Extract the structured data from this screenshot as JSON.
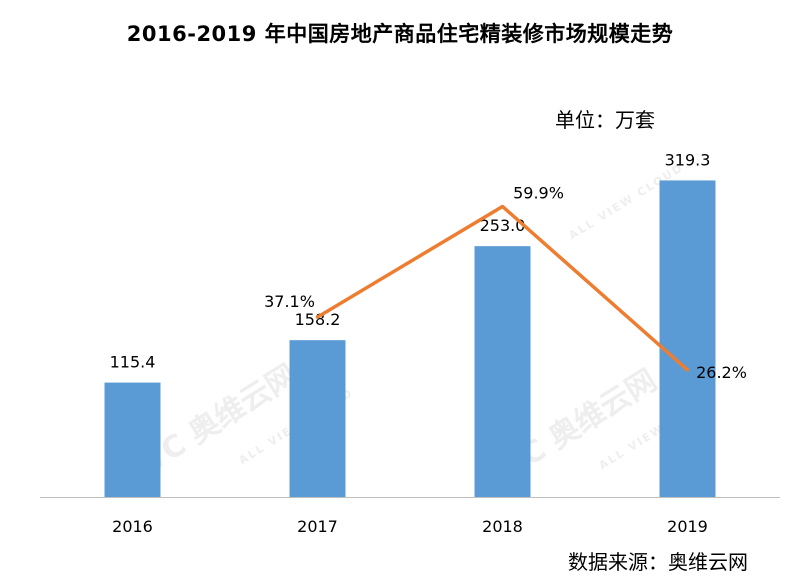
{
  "title": "2016-2019 年中国房地产商品住宅精装修市场规模走势",
  "unit_label": "单位：万套",
  "source_label": "数据来源：奥维云网",
  "watermark": {
    "logo_text": "AVC 奥维云网",
    "sub_text": "ALL VIEW CLOUD"
  },
  "colors": {
    "bar": "#5B9BD5",
    "line": "#ED7D31",
    "axis": "#BFBFBF"
  },
  "chart_data": {
    "type": "bar",
    "categories": [
      "2016",
      "2017",
      "2018",
      "2019"
    ],
    "series": [
      {
        "type": "bar",
        "values": [
          115.4,
          158.2,
          253.0,
          319.3
        ],
        "labels": [
          "115.4",
          "158.2",
          "253.0",
          "319.3"
        ]
      },
      {
        "type": "line",
        "values": [
          null,
          37.1,
          59.9,
          26.2
        ],
        "labels": [
          null,
          "37.1%",
          "59.9%",
          "26.2%"
        ]
      }
    ],
    "title": "2016-2019 年中国房地产商品住宅精装修市场规模走势",
    "xlabel": "",
    "ylabel": "",
    "ylim": [
      0,
      350
    ],
    "y2lim": [
      0,
      100
    ],
    "grid": false,
    "legend": "none"
  }
}
